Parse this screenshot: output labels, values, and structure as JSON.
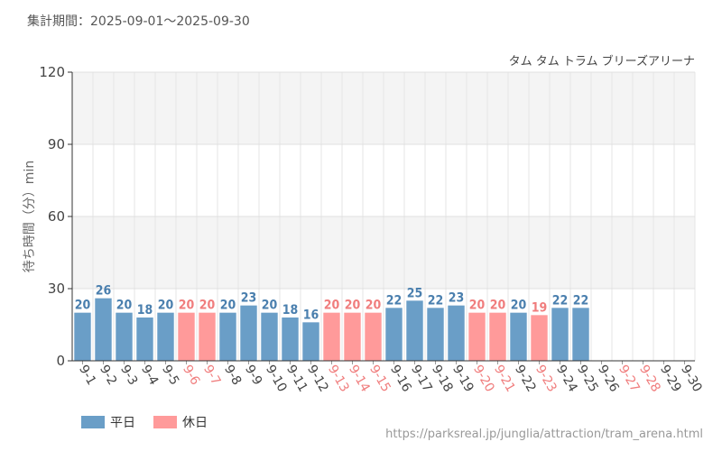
{
  "header": {
    "period": "集計期間：2025-09-01～2025-09-30"
  },
  "footer": {
    "url": "https://parksreal.jp/junglia/attraction/tram_arena.html"
  },
  "colors": {
    "weekday": "#6a9ec7",
    "holiday": "#ff9a9a",
    "weekday_label": "#4a7fae",
    "holiday_label": "#f07d7d",
    "band": "#f4f4f4"
  },
  "legend": {
    "weekday": "平日",
    "holiday": "休日"
  },
  "chart_data": {
    "type": "bar",
    "title": "タム タム トラム ブリーズアリーナ",
    "xlabel": "",
    "ylabel": "待ち時間（分）min",
    "ylim": [
      0,
      120
    ],
    "yticks": [
      0,
      30,
      60,
      90,
      120
    ],
    "grid": true,
    "legend_position": "bottom-left",
    "categories": [
      "9-1",
      "9-2",
      "9-3",
      "9-4",
      "9-5",
      "9-6",
      "9-7",
      "9-8",
      "9-9",
      "9-10",
      "9-11",
      "9-12",
      "9-13",
      "9-14",
      "9-15",
      "9-16",
      "9-17",
      "9-18",
      "9-19",
      "9-20",
      "9-21",
      "9-22",
      "9-23",
      "9-24",
      "9-25",
      "9-26",
      "9-27",
      "9-28",
      "9-29",
      "9-30"
    ],
    "values": [
      20,
      26,
      20,
      18,
      20,
      20,
      20,
      20,
      23,
      20,
      18,
      16,
      20,
      20,
      20,
      22,
      25,
      22,
      23,
      20,
      20,
      20,
      19,
      22,
      22,
      null,
      null,
      null,
      null,
      null
    ],
    "day_type": [
      "weekday",
      "weekday",
      "weekday",
      "weekday",
      "weekday",
      "holiday",
      "holiday",
      "weekday",
      "weekday",
      "weekday",
      "weekday",
      "weekday",
      "holiday",
      "holiday",
      "holiday",
      "weekday",
      "weekday",
      "weekday",
      "weekday",
      "holiday",
      "holiday",
      "weekday",
      "holiday",
      "weekday",
      "weekday",
      "weekday",
      "holiday",
      "holiday",
      "weekday",
      "weekday"
    ]
  }
}
